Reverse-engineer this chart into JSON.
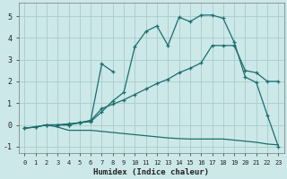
{
  "xlabel": "Humidex (Indice chaleur)",
  "background_color": "#cce8e8",
  "grid_color": "#aacccc",
  "line_color": "#1a6e6e",
  "xlim": [
    -0.5,
    23.5
  ],
  "ylim": [
    -1.3,
    5.6
  ],
  "xticks": [
    0,
    1,
    2,
    3,
    4,
    5,
    6,
    7,
    8,
    9,
    10,
    11,
    12,
    13,
    14,
    15,
    16,
    17,
    18,
    19,
    20,
    21,
    22,
    23
  ],
  "yticks": [
    -1,
    0,
    1,
    2,
    3,
    4,
    5
  ],
  "line_bell_x": [
    0,
    1,
    2,
    3,
    4,
    5,
    6,
    7,
    8,
    9,
    10,
    11,
    12,
    13,
    14,
    15,
    16,
    17,
    18,
    19,
    20,
    21,
    22,
    23
  ],
  "line_bell_y": [
    -0.15,
    -0.1,
    0.0,
    0.0,
    0.05,
    0.1,
    0.15,
    0.6,
    1.1,
    1.5,
    3.6,
    4.3,
    4.55,
    3.65,
    4.95,
    4.75,
    5.05,
    5.05,
    4.9,
    3.8,
    2.2,
    1.95,
    0.45,
    -1.0
  ],
  "line_diag_x": [
    0,
    1,
    2,
    3,
    4,
    5,
    6,
    7,
    8,
    9,
    10,
    11,
    12,
    13,
    14,
    15,
    16,
    17,
    18,
    19,
    20,
    21,
    22,
    23
  ],
  "line_diag_y": [
    -0.15,
    -0.1,
    0.0,
    0.0,
    0.0,
    0.1,
    0.2,
    0.75,
    0.95,
    1.15,
    1.4,
    1.65,
    1.9,
    2.1,
    2.4,
    2.6,
    2.85,
    3.65,
    3.65,
    3.65,
    2.5,
    2.4,
    2.0,
    2.0
  ],
  "line_flat_x": [
    0,
    1,
    2,
    3,
    4,
    5,
    6,
    7,
    8,
    9,
    10,
    11,
    12,
    13,
    14,
    15,
    16,
    17,
    18,
    19,
    20,
    21,
    22,
    23
  ],
  "line_flat_y": [
    -0.15,
    -0.1,
    0.0,
    -0.1,
    -0.25,
    -0.25,
    -0.25,
    -0.3,
    -0.35,
    -0.4,
    -0.45,
    -0.5,
    -0.55,
    -0.6,
    -0.63,
    -0.65,
    -0.65,
    -0.65,
    -0.65,
    -0.7,
    -0.75,
    -0.8,
    -0.88,
    -0.92
  ],
  "line_spike_x": [
    3,
    4,
    5,
    6,
    7,
    8
  ],
  "line_spike_y": [
    0.0,
    0.0,
    0.1,
    0.2,
    2.8,
    2.45
  ]
}
